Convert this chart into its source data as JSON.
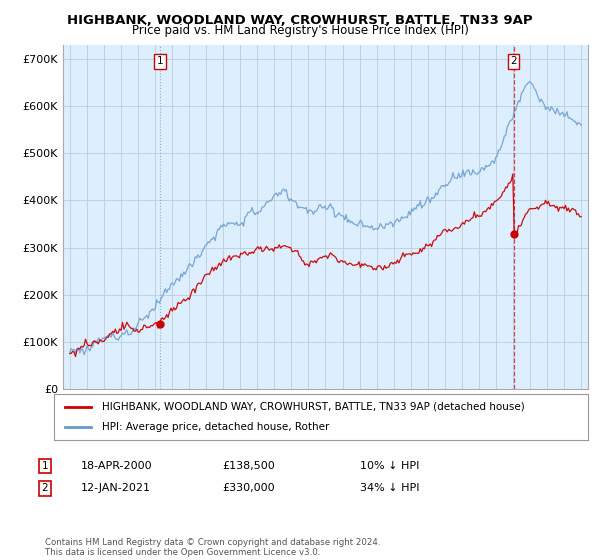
{
  "title": "HIGHBANK, WOODLAND WAY, CROWHURST, BATTLE, TN33 9AP",
  "subtitle": "Price paid vs. HM Land Registry's House Price Index (HPI)",
  "ylabel_ticks": [
    "£0",
    "£100K",
    "£200K",
    "£300K",
    "£400K",
    "£500K",
    "£600K",
    "£700K"
  ],
  "ytick_vals": [
    0,
    100000,
    200000,
    300000,
    400000,
    500000,
    600000,
    700000
  ],
  "ylim": [
    0,
    730000
  ],
  "legend_line1": "HIGHBANK, WOODLAND WAY, CROWHURST, BATTLE, TN33 9AP (detached house)",
  "legend_line2": "HPI: Average price, detached house, Rother",
  "annotation1_label": "1",
  "annotation1_date": "18-APR-2000",
  "annotation1_price": "£138,500",
  "annotation1_hpi": "10% ↓ HPI",
  "annotation2_label": "2",
  "annotation2_date": "12-JAN-2021",
  "annotation2_price": "£330,000",
  "annotation2_hpi": "34% ↓ HPI",
  "footer": "Contains HM Land Registry data © Crown copyright and database right 2024.\nThis data is licensed under the Open Government Licence v3.0.",
  "line_color_property": "#cc0000",
  "line_color_hpi": "#6699cc",
  "background_color": "#ffffff",
  "plot_bg_color": "#ddeeff",
  "grid_color": "#bbccdd",
  "point1_x": 2000.29,
  "point1_y": 138500,
  "point2_x": 2021.04,
  "point2_y": 330000,
  "xlim_left": 1994.6,
  "xlim_right": 2025.4
}
